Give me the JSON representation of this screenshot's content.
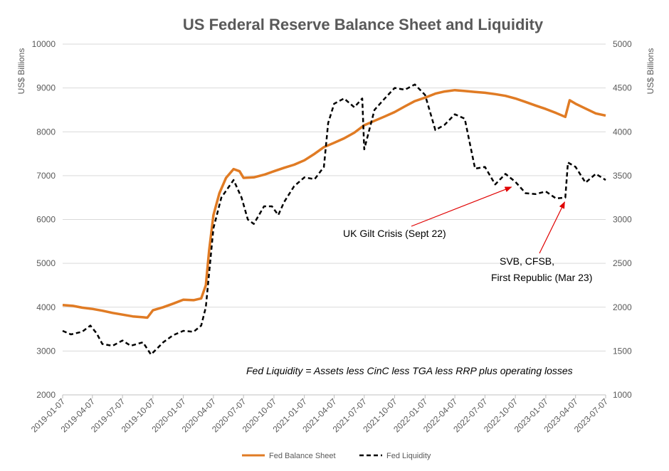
{
  "chart_data": {
    "type": "line",
    "title": "US Federal Reserve Balance Sheet and Liquidity",
    "ylabel_left": "US$ Billions",
    "ylabel_right": "US$ Billions",
    "ylim_left": [
      2000,
      10000
    ],
    "ylim_right": [
      1000,
      5000
    ],
    "yticks_left": [
      "2000",
      "3000",
      "4000",
      "5000",
      "6000",
      "7000",
      "8000",
      "9000",
      "10000"
    ],
    "yticks_right": [
      "1000",
      "1500",
      "2000",
      "2500",
      "3000",
      "3500",
      "4000",
      "4500",
      "5000"
    ],
    "xticks": [
      "2019-01-07",
      "2019-04-07",
      "2019-07-07",
      "2019-10-07",
      "2020-01-07",
      "2020-04-07",
      "2020-07-07",
      "2020-10-07",
      "2021-01-07",
      "2021-04-07",
      "2021-07-07",
      "2021-10-07",
      "2022-01-07",
      "2022-04-07",
      "2022-07-07",
      "2022-10-07",
      "2023-01-07",
      "2023-04-07",
      "2023-07-07"
    ],
    "x_range": [
      "2019-01-07",
      "2023-07-07"
    ],
    "grid": "horizontal",
    "legend_position": "bottom",
    "series": [
      {
        "name": "Fed Balance Sheet",
        "axis": "left",
        "color": "#E07B24",
        "style": "solid",
        "points": [
          [
            "2019-01-07",
            4050
          ],
          [
            "2019-02-07",
            4030
          ],
          [
            "2019-03-07",
            3990
          ],
          [
            "2019-04-07",
            3960
          ],
          [
            "2019-05-07",
            3920
          ],
          [
            "2019-06-07",
            3870
          ],
          [
            "2019-07-07",
            3830
          ],
          [
            "2019-08-07",
            3790
          ],
          [
            "2019-09-07",
            3770
          ],
          [
            "2019-09-20",
            3760
          ],
          [
            "2019-10-07",
            3930
          ],
          [
            "2019-11-07",
            4000
          ],
          [
            "2019-12-07",
            4080
          ],
          [
            "2020-01-07",
            4170
          ],
          [
            "2020-02-07",
            4160
          ],
          [
            "2020-03-01",
            4200
          ],
          [
            "2020-03-15",
            4500
          ],
          [
            "2020-03-25",
            5300
          ],
          [
            "2020-04-07",
            6100
          ],
          [
            "2020-04-25",
            6600
          ],
          [
            "2020-05-15",
            6950
          ],
          [
            "2020-06-07",
            7150
          ],
          [
            "2020-06-25",
            7100
          ],
          [
            "2020-07-07",
            6950
          ],
          [
            "2020-08-07",
            6960
          ],
          [
            "2020-09-07",
            7020
          ],
          [
            "2020-10-07",
            7100
          ],
          [
            "2020-11-07",
            7180
          ],
          [
            "2020-12-07",
            7250
          ],
          [
            "2021-01-07",
            7350
          ],
          [
            "2021-02-07",
            7500
          ],
          [
            "2021-03-07",
            7650
          ],
          [
            "2021-04-07",
            7750
          ],
          [
            "2021-05-07",
            7850
          ],
          [
            "2021-06-07",
            7980
          ],
          [
            "2021-07-07",
            8150
          ],
          [
            "2021-08-07",
            8250
          ],
          [
            "2021-09-07",
            8350
          ],
          [
            "2021-10-07",
            8450
          ],
          [
            "2021-11-07",
            8580
          ],
          [
            "2021-12-07",
            8700
          ],
          [
            "2022-01-07",
            8780
          ],
          [
            "2022-02-07",
            8870
          ],
          [
            "2022-03-07",
            8920
          ],
          [
            "2022-04-07",
            8950
          ],
          [
            "2022-05-07",
            8930
          ],
          [
            "2022-06-07",
            8910
          ],
          [
            "2022-07-07",
            8890
          ],
          [
            "2022-08-07",
            8860
          ],
          [
            "2022-09-07",
            8820
          ],
          [
            "2022-10-07",
            8760
          ],
          [
            "2022-11-07",
            8680
          ],
          [
            "2022-12-07",
            8600
          ],
          [
            "2023-01-07",
            8520
          ],
          [
            "2023-02-07",
            8430
          ],
          [
            "2023-03-07",
            8340
          ],
          [
            "2023-03-20",
            8720
          ],
          [
            "2023-04-07",
            8640
          ],
          [
            "2023-05-07",
            8530
          ],
          [
            "2023-06-07",
            8420
          ],
          [
            "2023-07-07",
            8370
          ]
        ]
      },
      {
        "name": "Fed Liquidity",
        "axis": "right",
        "color": "#000000",
        "style": "dashed",
        "points": [
          [
            "2019-01-07",
            1730
          ],
          [
            "2019-02-01",
            1690
          ],
          [
            "2019-03-07",
            1720
          ],
          [
            "2019-04-01",
            1790
          ],
          [
            "2019-04-20",
            1700
          ],
          [
            "2019-05-07",
            1580
          ],
          [
            "2019-06-07",
            1560
          ],
          [
            "2019-07-07",
            1620
          ],
          [
            "2019-08-01",
            1560
          ],
          [
            "2019-09-07",
            1600
          ],
          [
            "2019-10-01",
            1460
          ],
          [
            "2019-10-20",
            1530
          ],
          [
            "2019-11-07",
            1600
          ],
          [
            "2019-12-07",
            1680
          ],
          [
            "2020-01-07",
            1730
          ],
          [
            "2020-02-07",
            1720
          ],
          [
            "2020-03-01",
            1790
          ],
          [
            "2020-03-15",
            2000
          ],
          [
            "2020-04-07",
            2900
          ],
          [
            "2020-05-01",
            3250
          ],
          [
            "2020-06-07",
            3450
          ],
          [
            "2020-07-01",
            3250
          ],
          [
            "2020-07-20",
            3000
          ],
          [
            "2020-08-07",
            2950
          ],
          [
            "2020-09-07",
            3150
          ],
          [
            "2020-10-01",
            3150
          ],
          [
            "2020-10-20",
            3050
          ],
          [
            "2020-11-07",
            3200
          ],
          [
            "2020-12-07",
            3380
          ],
          [
            "2021-01-07",
            3480
          ],
          [
            "2021-02-07",
            3460
          ],
          [
            "2021-03-07",
            3600
          ],
          [
            "2021-03-20",
            4100
          ],
          [
            "2021-04-07",
            4320
          ],
          [
            "2021-05-07",
            4380
          ],
          [
            "2021-06-07",
            4280
          ],
          [
            "2021-07-01",
            4380
          ],
          [
            "2021-07-07",
            3800
          ],
          [
            "2021-08-07",
            4250
          ],
          [
            "2021-09-07",
            4380
          ],
          [
            "2021-10-07",
            4500
          ],
          [
            "2021-11-07",
            4480
          ],
          [
            "2021-12-07",
            4540
          ],
          [
            "2022-01-07",
            4420
          ],
          [
            "2022-02-07",
            4020
          ],
          [
            "2022-03-07",
            4080
          ],
          [
            "2022-04-07",
            4200
          ],
          [
            "2022-05-07",
            4150
          ],
          [
            "2022-06-07",
            3580
          ],
          [
            "2022-07-07",
            3600
          ],
          [
            "2022-08-07",
            3400
          ],
          [
            "2022-09-07",
            3520
          ],
          [
            "2022-10-07",
            3430
          ],
          [
            "2022-11-07",
            3300
          ],
          [
            "2022-12-07",
            3290
          ],
          [
            "2023-01-07",
            3320
          ],
          [
            "2023-02-07",
            3240
          ],
          [
            "2023-03-07",
            3250
          ],
          [
            "2023-03-15",
            3650
          ],
          [
            "2023-04-07",
            3600
          ],
          [
            "2023-05-07",
            3420
          ],
          [
            "2023-06-07",
            3520
          ],
          [
            "2023-07-07",
            3450
          ]
        ]
      }
    ],
    "annotations": [
      {
        "text": "UK Gilt Crisis (Sept 22)",
        "target_date": "2022-09-25",
        "target_value_right": 3370
      },
      {
        "text": "SVB, CFSB,",
        "text2": "First Republic (Mar 23)",
        "target_date": "2023-03-05",
        "target_value_right": 3200
      }
    ],
    "formula_note": "Fed Liquidity = Assets less CinC less TGA less RRP plus operating losses"
  }
}
